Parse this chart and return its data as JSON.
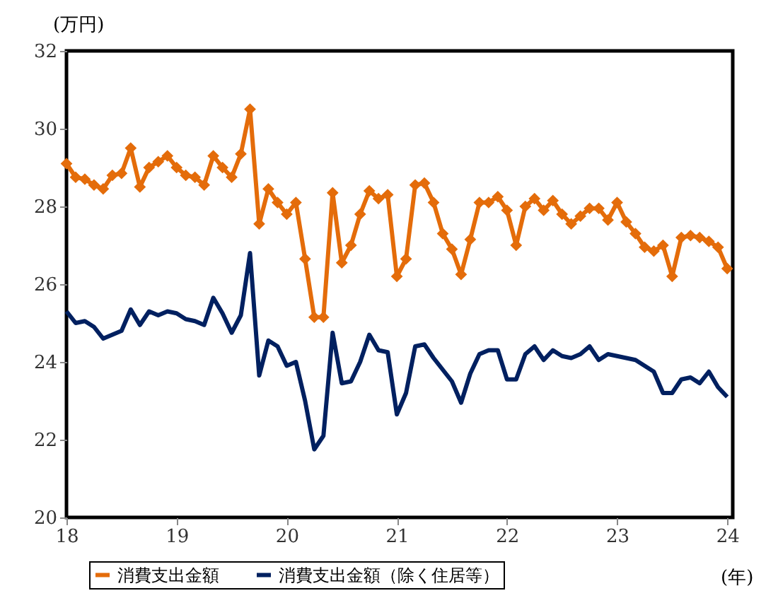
{
  "chart_data": {
    "type": "line",
    "ylabel": "(万円)",
    "xlabel": "(年)",
    "xlim": [
      18,
      24.05
    ],
    "xticks": [
      18,
      19,
      20,
      21,
      22,
      23,
      24
    ],
    "ylim": [
      20,
      32
    ],
    "yticks": [
      20,
      22,
      24,
      26,
      28,
      30,
      32
    ],
    "grid": false,
    "legend": "bottom",
    "line_style": "solid",
    "series": [
      {
        "name": "消費支出金額",
        "color": "#e46c0a",
        "marker": "diamond",
        "values": [
          29.1,
          28.75,
          28.7,
          28.55,
          28.45,
          28.8,
          28.85,
          29.5,
          28.5,
          29.0,
          29.15,
          29.3,
          29.0,
          28.8,
          28.75,
          28.55,
          29.3,
          29.0,
          28.75,
          29.35,
          30.5,
          27.55,
          28.45,
          28.1,
          27.8,
          28.1,
          26.65,
          25.15,
          25.15,
          28.35,
          26.55,
          27.0,
          27.8,
          28.4,
          28.2,
          28.3,
          26.2,
          26.65,
          28.55,
          28.6,
          28.1,
          27.3,
          26.9,
          26.25,
          27.15,
          28.1,
          28.1,
          28.25,
          27.9,
          27.0,
          28.0,
          28.2,
          27.9,
          28.15,
          27.8,
          27.55,
          27.75,
          27.95,
          27.95,
          27.65,
          28.1,
          27.6,
          27.3,
          26.95,
          26.85,
          27.0,
          26.2,
          27.2,
          27.25,
          27.2,
          27.1,
          26.95,
          26.4
        ]
      },
      {
        "name": "消費支出金額（除く住居等）",
        "color": "#002060",
        "marker": "none",
        "values": [
          25.3,
          25.0,
          25.05,
          24.9,
          24.6,
          24.7,
          24.8,
          25.35,
          24.95,
          25.3,
          25.2,
          25.3,
          25.25,
          25.1,
          25.05,
          24.95,
          25.65,
          25.25,
          24.75,
          25.2,
          26.8,
          23.65,
          24.55,
          24.4,
          23.9,
          24.0,
          23.0,
          21.75,
          22.1,
          24.75,
          23.45,
          23.5,
          24.0,
          24.7,
          24.3,
          24.25,
          22.65,
          23.2,
          24.4,
          24.45,
          24.1,
          23.8,
          23.5,
          22.95,
          23.7,
          24.2,
          24.3,
          24.3,
          23.55,
          23.55,
          24.2,
          24.4,
          24.05,
          24.3,
          24.15,
          24.1,
          24.2,
          24.4,
          24.05,
          24.2,
          24.15,
          24.1,
          24.05,
          23.9,
          23.75,
          23.2,
          23.2,
          23.55,
          23.6,
          23.45,
          23.75,
          23.35,
          23.1
        ]
      }
    ],
    "x": [
      18.0,
      18.0833,
      18.1667,
      18.25,
      18.3333,
      18.4167,
      18.5,
      18.5833,
      18.6667,
      18.75,
      18.8333,
      18.9167,
      19.0,
      19.0833,
      19.1667,
      19.25,
      19.3333,
      19.4167,
      19.5,
      19.5833,
      19.6667,
      19.75,
      19.8333,
      19.9167,
      20.0,
      20.0833,
      20.1667,
      20.25,
      20.3333,
      20.4167,
      20.5,
      20.5833,
      20.6667,
      20.75,
      20.8333,
      20.9167,
      21.0,
      21.0833,
      21.1667,
      21.25,
      21.3333,
      21.4167,
      21.5,
      21.5833,
      21.6667,
      21.75,
      21.8333,
      21.9167,
      22.0,
      22.0833,
      22.1667,
      22.25,
      22.3333,
      22.4167,
      22.5,
      22.5833,
      22.6667,
      22.75,
      22.8333,
      22.9167,
      23.0,
      23.0833,
      23.1667,
      23.25,
      23.3333,
      23.4167,
      23.5,
      23.5833,
      23.6667,
      23.75,
      23.8333,
      23.9167,
      24.0
    ]
  }
}
